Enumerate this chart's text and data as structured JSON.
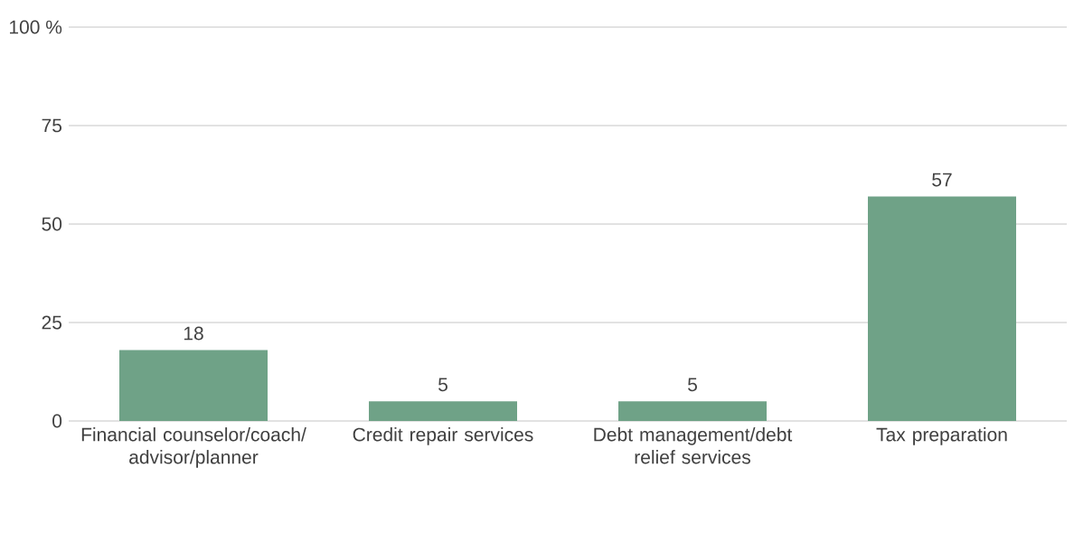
{
  "chart_data": {
    "type": "bar",
    "categories": [
      "Financial counselor/coach/ advisor/planner",
      "Credit repair services",
      "Debt management/debt relief services",
      "Tax preparation"
    ],
    "values": [
      18,
      5,
      5,
      57
    ],
    "color": "#6fa287",
    "ylim": [
      0,
      100
    ],
    "yticks": [
      0,
      25,
      50,
      75,
      {
        "value": 100,
        "label": "100 %"
      }
    ],
    "grid": "y",
    "data_labels": true
  }
}
